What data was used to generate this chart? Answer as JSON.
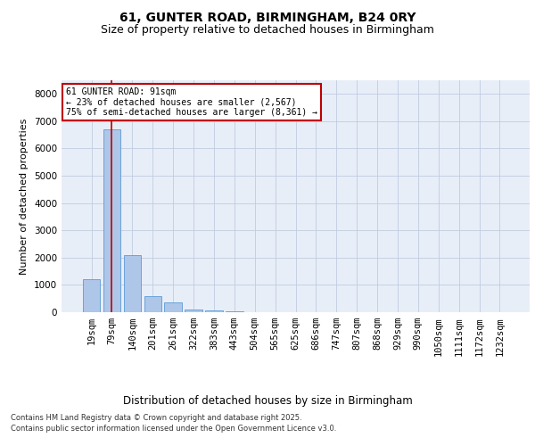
{
  "title1": "61, GUNTER ROAD, BIRMINGHAM, B24 0RY",
  "title2": "Size of property relative to detached houses in Birmingham",
  "xlabel": "Distribution of detached houses by size in Birmingham",
  "ylabel": "Number of detached properties",
  "categories": [
    "19sqm",
    "79sqm",
    "140sqm",
    "201sqm",
    "261sqm",
    "322sqm",
    "383sqm",
    "443sqm",
    "504sqm",
    "565sqm",
    "625sqm",
    "686sqm",
    "747sqm",
    "807sqm",
    "868sqm",
    "929sqm",
    "990sqm",
    "1050sqm",
    "1111sqm",
    "1172sqm",
    "1232sqm"
  ],
  "values": [
    1200,
    6700,
    2100,
    600,
    350,
    110,
    50,
    18,
    5,
    0,
    0,
    0,
    0,
    0,
    0,
    0,
    0,
    0,
    0,
    0,
    0
  ],
  "bar_color": "#aec6e8",
  "bar_edge_color": "#5b9bd5",
  "highlight_index": 1,
  "highlight_color": "#c00000",
  "annotation_text": "61 GUNTER ROAD: 91sqm\n← 23% of detached houses are smaller (2,567)\n75% of semi-detached houses are larger (8,361) →",
  "annotation_box_color": "#ffffff",
  "annotation_box_edge": "#c00000",
  "ylim": [
    0,
    8500
  ],
  "yticks": [
    0,
    1000,
    2000,
    3000,
    4000,
    5000,
    6000,
    7000,
    8000
  ],
  "background_color": "#e8eef8",
  "footer_line1": "Contains HM Land Registry data © Crown copyright and database right 2025.",
  "footer_line2": "Contains public sector information licensed under the Open Government Licence v3.0.",
  "title1_fontsize": 10,
  "title2_fontsize": 9,
  "xlabel_fontsize": 8.5,
  "ylabel_fontsize": 8,
  "tick_fontsize": 7.5,
  "footer_fontsize": 6,
  "annot_fontsize": 7
}
